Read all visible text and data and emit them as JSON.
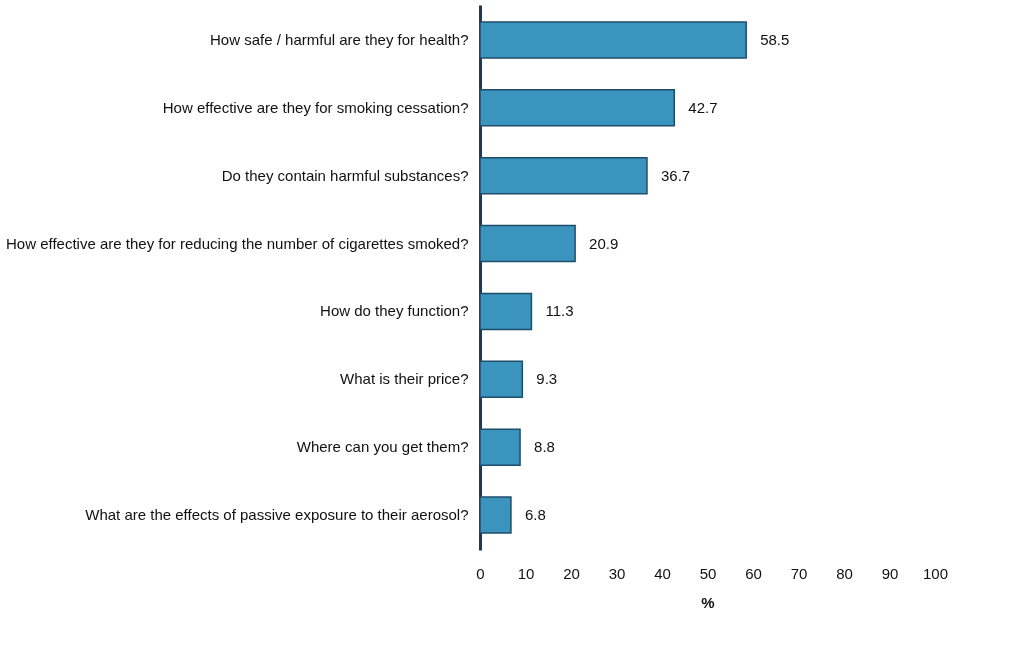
{
  "chart_data": {
    "type": "bar",
    "orientation": "horizontal",
    "xlabel": "%",
    "categories": [
      "How safe / harmful are they for health?",
      "How effective are they for smoking cessation?",
      "Do they contain harmful substances?",
      "How effective are they for reducing the number of cigarettes smoked?",
      "How do they function?",
      "What is their price?",
      "Where can you get them?",
      "What are the effects of passive exposure to their aerosol?"
    ],
    "values": [
      58.5,
      42.7,
      36.7,
      20.9,
      11.3,
      9.3,
      8.8,
      6.8
    ],
    "color": "#3a94bd",
    "xlim": [
      0,
      100
    ],
    "xticks": [
      0,
      10,
      20,
      30,
      40,
      50,
      60,
      70,
      80,
      90,
      100
    ],
    "data_labels": true,
    "grid": false
  }
}
